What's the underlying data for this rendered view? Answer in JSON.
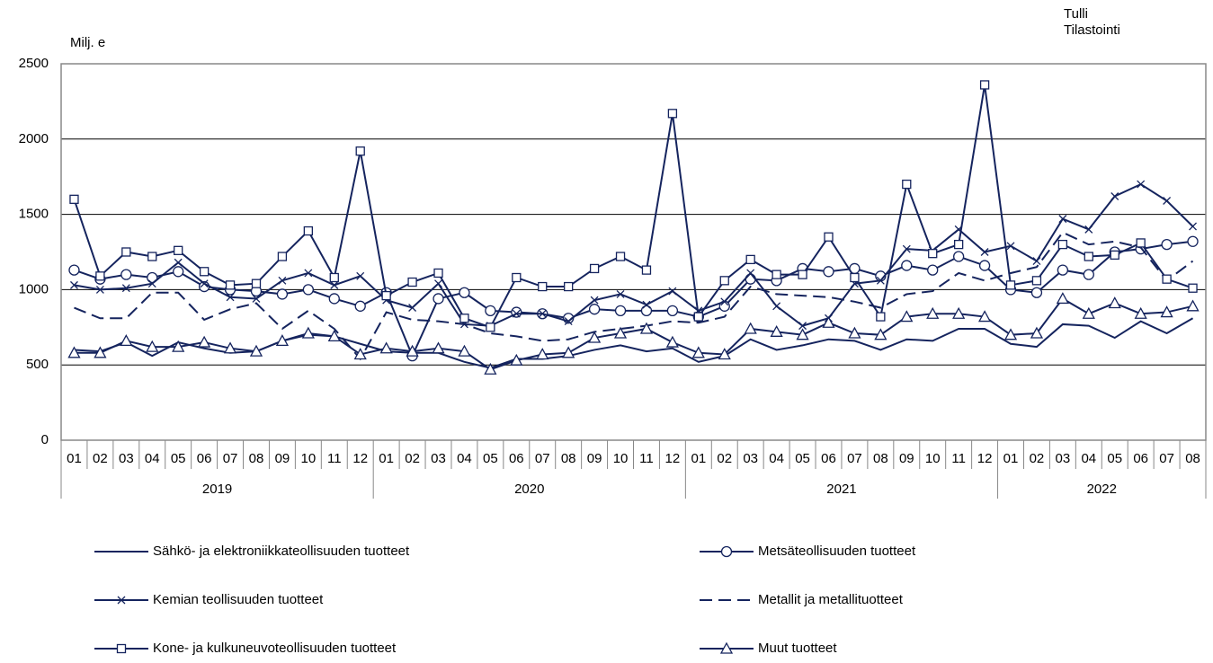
{
  "chart_data": {
    "type": "line",
    "ylabel": "Milj. e",
    "source": [
      "Tulli",
      "Tilastointi"
    ],
    "ylim": [
      0,
      2500
    ],
    "yticks": [
      0,
      500,
      1000,
      1500,
      2000,
      2500
    ],
    "grid": true,
    "category_groups": [
      {
        "label": "2019",
        "categories": [
          "01",
          "02",
          "03",
          "04",
          "05",
          "06",
          "07",
          "08",
          "09",
          "10",
          "11",
          "12"
        ]
      },
      {
        "label": "2020",
        "categories": [
          "01",
          "02",
          "03",
          "04",
          "05",
          "06",
          "07",
          "08",
          "09",
          "10",
          "11",
          "12"
        ]
      },
      {
        "label": "2021",
        "categories": [
          "01",
          "02",
          "03",
          "04",
          "05",
          "06",
          "07",
          "08",
          "09",
          "10",
          "11",
          "12"
        ]
      },
      {
        "label": "2022",
        "categories": [
          "01",
          "02",
          "03",
          "04",
          "05",
          "06",
          "07",
          "08"
        ]
      }
    ],
    "series": [
      {
        "name": "Sähkö- ja elektroniikkateollisuuden tuotteet",
        "color": "#15245e",
        "marker": "none",
        "dash": false,
        "values": [
          600,
          590,
          650,
          560,
          650,
          610,
          580,
          590,
          660,
          700,
          690,
          640,
          590,
          580,
          580,
          520,
          480,
          540,
          540,
          560,
          600,
          630,
          590,
          610,
          520,
          560,
          670,
          600,
          630,
          670,
          660,
          600,
          670,
          660,
          740,
          740,
          640,
          620,
          770,
          760,
          680,
          790,
          710,
          810
        ]
      },
      {
        "name": "Metsäteollisuuden tuotteet",
        "color": "#15245e",
        "marker": "circle",
        "dash": false,
        "values": [
          1130,
          1070,
          1100,
          1080,
          1120,
          1020,
          1000,
          990,
          970,
          1000,
          940,
          890,
          980,
          560,
          940,
          980,
          860,
          850,
          840,
          810,
          870,
          860,
          860,
          860,
          820,
          890,
          1070,
          1060,
          1140,
          1120,
          1140,
          1090,
          1160,
          1130,
          1220,
          1160,
          1000,
          980,
          1130,
          1100,
          1250,
          1270,
          1300,
          1320
        ]
      },
      {
        "name": "Kemian teollisuuden tuotteet",
        "color": "#15245e",
        "marker": "x",
        "dash": false,
        "values": [
          1030,
          1000,
          1010,
          1040,
          1180,
          1040,
          950,
          940,
          1060,
          1110,
          1030,
          1090,
          930,
          880,
          1040,
          770,
          760,
          840,
          840,
          790,
          930,
          970,
          900,
          990,
          860,
          920,
          1110,
          890,
          760,
          810,
          1040,
          1060,
          1270,
          1260,
          1400,
          1250,
          1290,
          1190,
          1470,
          1400,
          1620,
          1700,
          1590,
          1420
        ]
      },
      {
        "name": "Metallit ja metallituotteet",
        "color": "#15245e",
        "marker": "none",
        "dash": true,
        "values": [
          880,
          810,
          810,
          980,
          980,
          800,
          870,
          910,
          740,
          860,
          740,
          540,
          850,
          800,
          790,
          770,
          710,
          690,
          660,
          670,
          720,
          740,
          760,
          790,
          780,
          820,
          1020,
          970,
          960,
          950,
          920,
          880,
          970,
          990,
          1110,
          1060,
          1110,
          1150,
          1380,
          1300,
          1320,
          1280,
          1060,
          1190
        ]
      },
      {
        "name": "Kone- ja kulkuneuvoteollisuuden tuotteet",
        "color": "#15245e",
        "marker": "square",
        "dash": false,
        "values": [
          1600,
          1090,
          1250,
          1220,
          1260,
          1120,
          1030,
          1040,
          1220,
          1390,
          1080,
          1920,
          960,
          1050,
          1110,
          810,
          750,
          1080,
          1020,
          1020,
          1140,
          1220,
          1130,
          2170,
          820,
          1060,
          1200,
          1100,
          1100,
          1350,
          1080,
          820,
          1700,
          1240,
          1300,
          2360,
          1030,
          1060,
          1300,
          1220,
          1230,
          1310,
          1070,
          1010
        ]
      },
      {
        "name": "Muut tuotteet",
        "color": "#15245e",
        "marker": "triangle",
        "dash": false,
        "values": [
          580,
          580,
          660,
          620,
          620,
          650,
          610,
          590,
          660,
          710,
          690,
          570,
          610,
          590,
          610,
          590,
          470,
          530,
          570,
          580,
          680,
          710,
          740,
          650,
          580,
          570,
          740,
          720,
          700,
          780,
          710,
          700,
          820,
          840,
          840,
          820,
          700,
          710,
          940,
          840,
          910,
          840,
          850,
          890
        ]
      }
    ]
  }
}
